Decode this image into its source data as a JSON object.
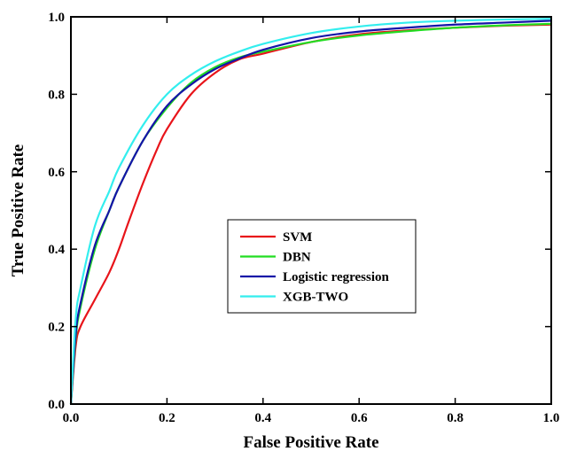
{
  "chart_data": {
    "type": "line",
    "xlabel": "False Positive Rate",
    "ylabel": "True Positive Rate",
    "xlim": [
      0,
      1
    ],
    "ylim": [
      0,
      1
    ],
    "xticks": [
      "0.0",
      "0.2",
      "0.4",
      "0.6",
      "0.8",
      "1.0"
    ],
    "yticks": [
      "0.0",
      "0.2",
      "0.4",
      "0.6",
      "0.8",
      "1.0"
    ],
    "grid": false,
    "legend_position": "center-right",
    "series": [
      {
        "name": "SVM",
        "color": "#e8141a",
        "x": [
          0,
          0.01,
          0.02,
          0.05,
          0.08,
          0.1,
          0.12,
          0.15,
          0.18,
          0.2,
          0.25,
          0.3,
          0.35,
          0.4,
          0.5,
          0.6,
          0.7,
          0.8,
          0.9,
          1.0
        ],
        "y": [
          0,
          0.15,
          0.2,
          0.27,
          0.34,
          0.4,
          0.47,
          0.57,
          0.66,
          0.71,
          0.8,
          0.855,
          0.89,
          0.905,
          0.935,
          0.955,
          0.965,
          0.972,
          0.977,
          0.98
        ]
      },
      {
        "name": "DBN",
        "color": "#22dd22",
        "x": [
          0,
          0.01,
          0.02,
          0.05,
          0.08,
          0.1,
          0.15,
          0.2,
          0.25,
          0.3,
          0.35,
          0.4,
          0.5,
          0.6,
          0.7,
          0.8,
          0.9,
          1.0
        ],
        "y": [
          0,
          0.17,
          0.25,
          0.4,
          0.5,
          0.56,
          0.68,
          0.765,
          0.83,
          0.87,
          0.895,
          0.91,
          0.935,
          0.952,
          0.963,
          0.972,
          0.978,
          0.982
        ]
      },
      {
        "name": "Logistic regression",
        "color": "#1414a8",
        "x": [
          0,
          0.01,
          0.02,
          0.05,
          0.08,
          0.1,
          0.15,
          0.2,
          0.25,
          0.3,
          0.35,
          0.4,
          0.5,
          0.6,
          0.7,
          0.8,
          0.9,
          1.0
        ],
        "y": [
          0,
          0.18,
          0.26,
          0.41,
          0.5,
          0.56,
          0.68,
          0.77,
          0.825,
          0.865,
          0.892,
          0.915,
          0.945,
          0.962,
          0.972,
          0.98,
          0.985,
          0.99
        ]
      },
      {
        "name": "XGB-TWO",
        "color": "#33eeee",
        "x": [
          0,
          0.01,
          0.02,
          0.05,
          0.08,
          0.1,
          0.15,
          0.2,
          0.25,
          0.3,
          0.35,
          0.4,
          0.5,
          0.6,
          0.7,
          0.8,
          0.9,
          1.0
        ],
        "y": [
          0,
          0.22,
          0.3,
          0.46,
          0.55,
          0.61,
          0.72,
          0.8,
          0.85,
          0.885,
          0.91,
          0.93,
          0.958,
          0.975,
          0.985,
          0.99,
          0.993,
          0.995
        ]
      }
    ]
  }
}
